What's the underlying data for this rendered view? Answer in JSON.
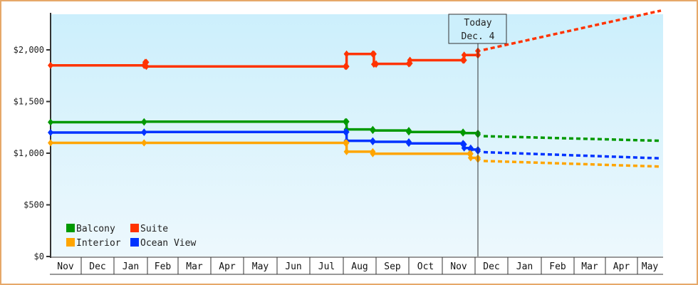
{
  "chart_data": {
    "type": "line",
    "title": "",
    "xlabel": "",
    "ylabel": "",
    "ylim": [
      0,
      2350
    ],
    "y_ticks": [
      {
        "value": 0,
        "label": "$0"
      },
      {
        "value": 500,
        "label": "$500"
      },
      {
        "value": 1000,
        "label": "$1,000"
      },
      {
        "value": 1500,
        "label": "$1,500"
      },
      {
        "value": 2000,
        "label": "$2,000"
      }
    ],
    "months": [
      "Nov",
      "Dec",
      "Jan",
      "Feb",
      "Mar",
      "Apr",
      "May",
      "Jun",
      "Jul",
      "Aug",
      "Sep",
      "Oct",
      "Nov",
      "Dec",
      "Jan",
      "Feb",
      "Mar",
      "Apr",
      "May"
    ],
    "today": {
      "line1": "Today",
      "line2": "Dec. 4"
    },
    "legend": [
      {
        "name": "Balcony",
        "color": "#009900"
      },
      {
        "name": "Suite",
        "color": "#ff3300"
      },
      {
        "name": "Interior",
        "color": "#ffa500"
      },
      {
        "name": "Ocean View",
        "color": "#0033ff"
      }
    ],
    "series": [
      {
        "name": "Suite",
        "color": "#ff3300",
        "history": [
          [
            "Nov 1",
            1850
          ],
          [
            "Jan 28",
            1850
          ],
          [
            "Jan 29",
            1880
          ],
          [
            "Jan 30",
            1840
          ],
          [
            "Aug 3",
            1840
          ],
          [
            "Aug 4",
            1960
          ],
          [
            "Aug 28",
            1960
          ],
          [
            "Aug 29",
            1860
          ],
          [
            "Sep 1",
            1865
          ],
          [
            "Oct 1",
            1870
          ],
          [
            "Oct 2",
            1900
          ],
          [
            "Nov 20",
            1900
          ],
          [
            "Nov 21",
            1950
          ],
          [
            "Dec 4",
            1950
          ],
          [
            "Dec 4",
            1990
          ]
        ],
        "forecast": [
          [
            "Dec 4",
            2000
          ],
          [
            "May 31",
            2380
          ]
        ]
      },
      {
        "name": "Balcony",
        "color": "#009900",
        "history": [
          [
            "Nov 1",
            1300
          ],
          [
            "Jan 28",
            1305
          ],
          [
            "Aug 3",
            1305
          ],
          [
            "Aug 4",
            1230
          ],
          [
            "Aug 28",
            1220
          ],
          [
            "Oct 1",
            1205
          ],
          [
            "Nov 20",
            1195
          ],
          [
            "Dec 4",
            1180
          ]
        ],
        "forecast": [
          [
            "Dec 4",
            1165
          ],
          [
            "May 31",
            1120
          ]
        ]
      },
      {
        "name": "Ocean View",
        "color": "#0033ff",
        "history": [
          [
            "Nov 1",
            1200
          ],
          [
            "Jan 28",
            1205
          ],
          [
            "Aug 3",
            1205
          ],
          [
            "Aug 4",
            1120
          ],
          [
            "Aug 28",
            1110
          ],
          [
            "Oct 1",
            1095
          ],
          [
            "Nov 20",
            1085
          ],
          [
            "Nov 21",
            1050
          ],
          [
            "Nov 27",
            1035
          ],
          [
            "Dec 4",
            1020
          ]
        ],
        "forecast": [
          [
            "Dec 4",
            1010
          ],
          [
            "May 31",
            950
          ]
        ]
      },
      {
        "name": "Interior",
        "color": "#ffa500",
        "history": [
          [
            "Nov 1",
            1100
          ],
          [
            "Jan 28",
            1100
          ],
          [
            "Aug 3",
            1100
          ],
          [
            "Aug 4",
            1015
          ],
          [
            "Aug 28",
            995
          ],
          [
            "Nov 26",
            995
          ],
          [
            "Nov 27",
            955
          ],
          [
            "Dec 4",
            940
          ]
        ],
        "forecast": [
          [
            "Dec 4",
            925
          ],
          [
            "May 31",
            870
          ]
        ]
      }
    ]
  }
}
